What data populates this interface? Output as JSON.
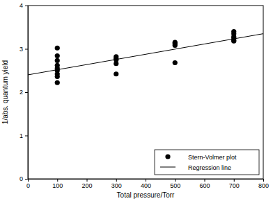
{
  "chart_data": {
    "type": "scatter",
    "x_label": "Total pressure/Torr",
    "y_label": "1/abs. quantum yield",
    "xlim": [
      0,
      800
    ],
    "xticks": [
      0,
      100,
      200,
      300,
      400,
      500,
      600,
      700,
      800
    ],
    "ylim": [
      0,
      4
    ],
    "yticks": [
      0,
      1,
      2,
      3,
      4
    ],
    "grid": false,
    "legend": "lower right",
    "series": [
      {
        "name": "Stern-Volmer plot",
        "type": "scatter",
        "color": "#000000",
        "marker": "circle",
        "x": [
          100,
          100,
          100,
          100,
          100,
          100,
          100,
          100,
          100,
          300,
          300,
          300,
          300,
          300,
          500,
          500,
          500,
          500,
          700,
          700,
          700,
          700,
          700,
          700
        ],
        "values": [
          3.02,
          2.84,
          2.73,
          2.62,
          2.55,
          2.5,
          2.42,
          2.36,
          2.22,
          2.82,
          2.78,
          2.75,
          2.66,
          2.42,
          3.15,
          3.12,
          3.08,
          2.68,
          3.4,
          3.35,
          3.28,
          3.25,
          3.2,
          3.18
        ]
      },
      {
        "name": "Regression line",
        "type": "line",
        "color": "#000000",
        "line_style": "solid",
        "x": [
          0,
          800
        ],
        "values": [
          2.4,
          3.35
        ]
      }
    ]
  }
}
